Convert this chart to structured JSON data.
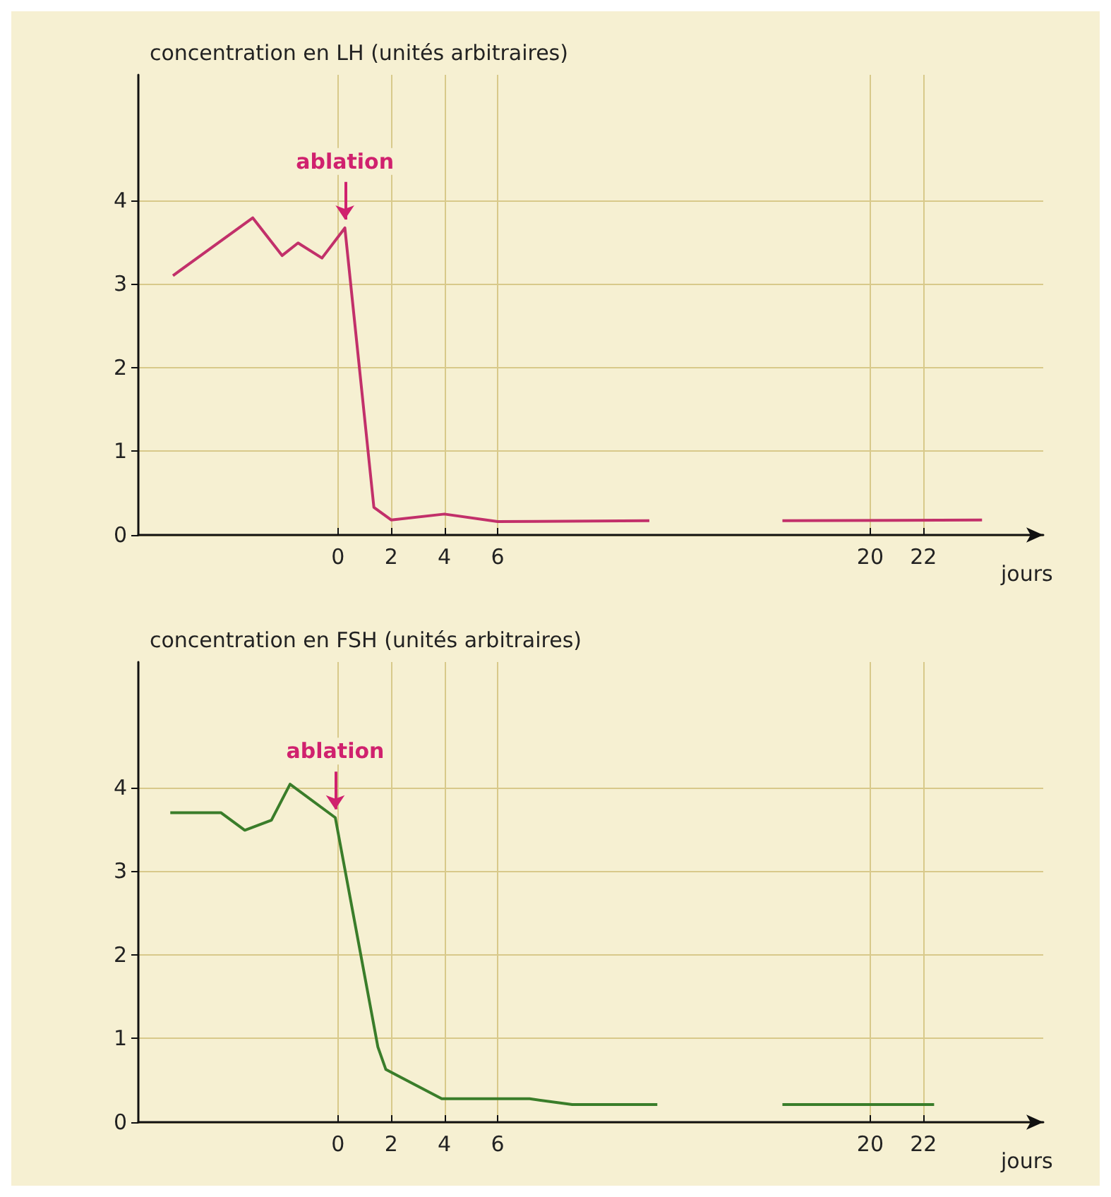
{
  "chart_data": [
    {
      "type": "line",
      "ylabel": "concentration en LH (unités arbitraires)",
      "xlabel": "jours",
      "xlim": [
        -7.5,
        26.5
      ],
      "ylim": [
        0,
        5.5
      ],
      "xticks": [
        0,
        2,
        4,
        6,
        20,
        22
      ],
      "yticks": [
        0,
        1,
        2,
        3,
        4
      ],
      "grid": true,
      "annotations": [
        {
          "text": "ablation",
          "x": 0.26,
          "y": 3.67
        }
      ],
      "series": [
        {
          "color": "#c2306a",
          "x": [
            -6.2,
            -3.2,
            -2.1,
            -1.5,
            -0.6,
            0.26,
            1.35,
            2,
            4,
            6,
            11.7,
            14,
            16.7,
            24.2
          ],
          "values": [
            3.1,
            3.79,
            3.34,
            3.49,
            3.31,
            3.67,
            0.33,
            0.18,
            0.25,
            0.16,
            0.17,
            null,
            0.17,
            0.18
          ]
        }
      ]
    },
    {
      "type": "line",
      "ylabel": "concentration en FSH (unités arbitraires)",
      "xlabel": "jours",
      "xlim": [
        -7.5,
        26.5
      ],
      "ylim": [
        0,
        5.5
      ],
      "xticks": [
        0,
        2,
        4,
        6,
        20,
        22
      ],
      "yticks": [
        0,
        1,
        2,
        3,
        4
      ],
      "grid": true,
      "annotations": [
        {
          "text": "ablation",
          "x": -0.1,
          "y": 3.64
        }
      ],
      "series": [
        {
          "color": "#3a7d2a",
          "x": [
            -6.3,
            -4.4,
            -3.5,
            -2.5,
            -1.8,
            -0.1,
            1.5,
            1.8,
            3.9,
            7.2,
            8.8,
            12,
            14,
            16.7,
            22.4
          ],
          "values": [
            3.7,
            3.7,
            3.49,
            3.61,
            4.04,
            3.64,
            0.9,
            0.63,
            0.28,
            0.28,
            0.21,
            0.21,
            null,
            0.21,
            0.21
          ]
        }
      ]
    }
  ]
}
